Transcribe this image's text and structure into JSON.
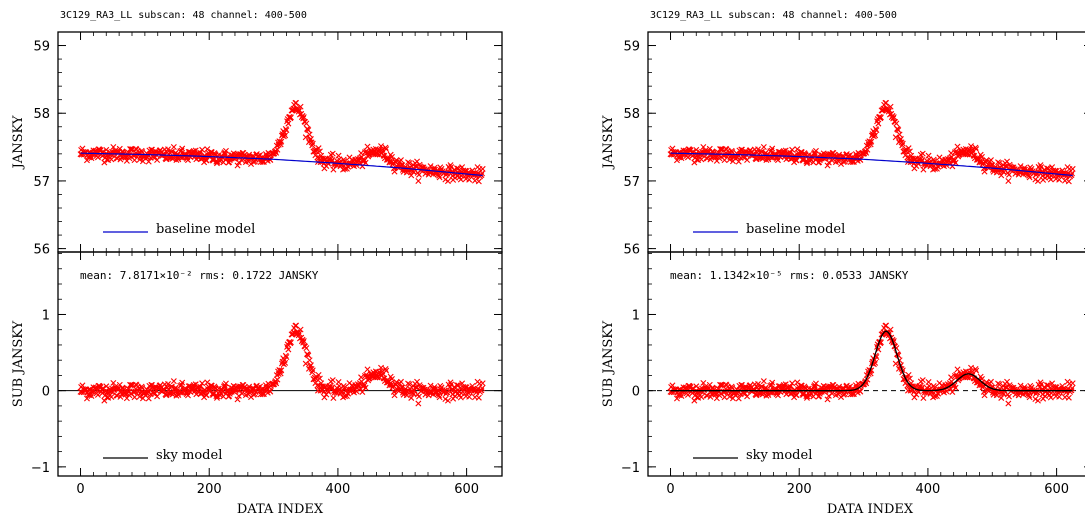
{
  "colors": {
    "data": "#ff0000",
    "baseline": "#0000cc",
    "model": "#000000",
    "frame": "#000000"
  },
  "chart_data": [
    {
      "type": "scatter",
      "header": "3C129_RA3_LL  subscan: 48  channel: 400-500",
      "top": {
        "ylabel": "JANSKY",
        "ylim": [
          55.95,
          59.2
        ],
        "yticks": [
          "56",
          "57",
          "58",
          "59"
        ],
        "legend": "baseline model",
        "baseline": {
          "x": [
            0,
            100,
            200,
            300,
            400,
            500,
            625
          ],
          "y": [
            57.41,
            57.39,
            57.36,
            57.32,
            57.26,
            57.19,
            57.08
          ]
        },
        "signal_peaks": [
          {
            "x": 335,
            "height": 0.78,
            "width": 17
          },
          {
            "x": 463,
            "height": 0.22,
            "width": 18
          }
        ]
      },
      "bottom": {
        "ylabel": "SUB JANSKY",
        "xlabel": "DATA INDEX",
        "ylim": [
          -1.12,
          1.82
        ],
        "yticks": [
          "−1",
          "0",
          "1"
        ],
        "xlim": [
          -35,
          655
        ],
        "xticks": [
          "0",
          "200",
          "400",
          "600"
        ],
        "legend": "sky model",
        "stats": "mean: 7.8171×10⁻²   rms: 0.1722   JANSKY",
        "model_shown": false,
        "zero_line": "solid"
      },
      "noise_rms": 0.05
    },
    {
      "type": "scatter",
      "header": "3C129_RA3_LL  subscan: 48  channel: 400-500",
      "top": {
        "ylabel": "JANSKY",
        "ylim": [
          55.95,
          59.2
        ],
        "yticks": [
          "56",
          "57",
          "58",
          "59"
        ],
        "legend": "baseline model",
        "baseline": {
          "x": [
            0,
            100,
            200,
            300,
            400,
            500,
            625
          ],
          "y": [
            57.41,
            57.39,
            57.36,
            57.32,
            57.26,
            57.19,
            57.08
          ]
        },
        "signal_peaks": [
          {
            "x": 335,
            "height": 0.78,
            "width": 17
          },
          {
            "x": 463,
            "height": 0.22,
            "width": 18
          }
        ]
      },
      "bottom": {
        "ylabel": "SUB JANSKY",
        "xlabel": "DATA INDEX",
        "ylim": [
          -1.12,
          1.82
        ],
        "yticks": [
          "−1",
          "0",
          "1"
        ],
        "xlim": [
          -35,
          655
        ],
        "xticks": [
          "0",
          "200",
          "400",
          "600"
        ],
        "legend": "sky model",
        "stats": "mean: 1.1342×10⁻⁵   rms: 0.0533   JANSKY",
        "model_shown": true,
        "zero_line": "dashed"
      },
      "noise_rms": 0.05
    }
  ]
}
